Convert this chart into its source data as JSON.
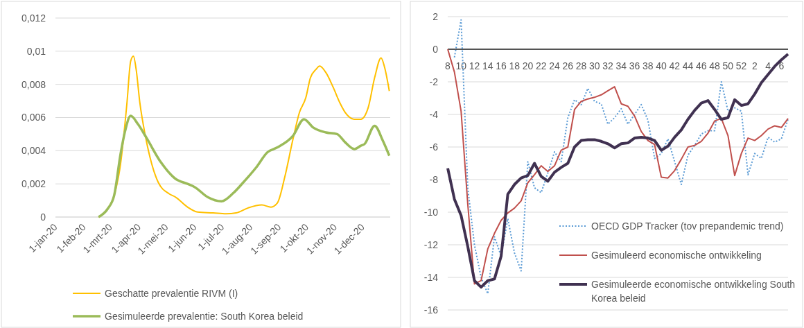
{
  "chart_data": [
    {
      "type": "line",
      "xlim": [
        "2020-01-01",
        "2020-12-31"
      ],
      "xticks": [
        {
          "value": "2020-01-01",
          "label": "1-jan-20"
        },
        {
          "value": "2020-02-01",
          "label": "1-feb-20"
        },
        {
          "value": "2020-03-01",
          "label": "1-mrt-20"
        },
        {
          "value": "2020-04-01",
          "label": "1-apr-20"
        },
        {
          "value": "2020-05-01",
          "label": "1-mei-20"
        },
        {
          "value": "2020-06-01",
          "label": "1-jun-20"
        },
        {
          "value": "2020-07-01",
          "label": "1-jul-20"
        },
        {
          "value": "2020-08-01",
          "label": "1-aug-20"
        },
        {
          "value": "2020-09-01",
          "label": "1-sep-20"
        },
        {
          "value": "2020-10-01",
          "label": "1-okt-20"
        },
        {
          "value": "2020-11-01",
          "label": "1-nov-20"
        },
        {
          "value": "2020-12-01",
          "label": "1-dec-20"
        }
      ],
      "ylim": [
        0,
        0.012
      ],
      "yticks": [
        0,
        {
          "value": 0.002,
          "label": "0,002"
        },
        {
          "value": 0.004,
          "label": "0,004"
        },
        {
          "value": 0.006,
          "label": "0,006"
        },
        {
          "value": 0.008,
          "label": "0,008"
        },
        {
          "value": 0.01,
          "label": "0,01"
        },
        {
          "value": 0.012,
          "label": "0,012"
        }
      ],
      "grid": "y",
      "legend": "bottom",
      "series": [
        {
          "name": "Geschatte prevalentie RIVM (I)",
          "color": "#ffc000",
          "x": [
            "2020-02-17",
            "2020-02-27",
            "2020-03-05",
            "2020-03-12",
            "2020-03-19",
            "2020-03-23",
            "2020-03-26",
            "2020-03-29",
            "2020-04-02",
            "2020-04-08",
            "2020-04-15",
            "2020-04-22",
            "2020-05-04",
            "2020-05-11",
            "2020-05-24",
            "2020-06-04",
            "2020-06-21",
            "2020-07-05",
            "2020-07-16",
            "2020-07-29",
            "2020-08-13",
            "2020-08-23",
            "2020-08-30",
            "2020-09-07",
            "2020-09-16",
            "2020-09-23",
            "2020-09-30",
            "2020-10-05",
            "2020-10-11",
            "2020-10-15",
            "2020-10-22",
            "2020-10-30",
            "2020-11-06",
            "2020-11-12",
            "2020-11-22",
            "2020-11-29",
            "2020-12-07",
            "2020-12-14",
            "2020-12-21",
            "2020-12-25",
            "2020-12-30"
          ],
          "values": [
            0,
            0.0005,
            0.0013,
            0.0032,
            0.0069,
            0.0094,
            0.0097,
            0.0089,
            0.0069,
            0.0049,
            0.0032,
            0.0021,
            0.0014,
            0.0012,
            0.0006,
            0.0003,
            0.00025,
            0.0002,
            0.00025,
            0.00055,
            0.00073,
            0.0006,
            0.00085,
            0.0024,
            0.0047,
            0.0063,
            0.0072,
            0.0084,
            0.0089,
            0.0091,
            0.0087,
            0.0078,
            0.0069,
            0.0063,
            0.0059,
            0.0059,
            0.0066,
            0.0084,
            0.0096,
            0.009,
            0.0076
          ]
        },
        {
          "name": "Gesimuleerde prevalentie: South Korea beleid",
          "color": "#9bbb59",
          "x": [
            "2020-02-17",
            "2020-02-27",
            "2020-03-05",
            "2020-03-12",
            "2020-03-17",
            "2020-03-23",
            "2020-03-31",
            "2020-04-09",
            "2020-04-25",
            "2020-05-11",
            "2020-05-24",
            "2020-06-01",
            "2020-06-15",
            "2020-06-30",
            "2020-07-13",
            "2020-07-24",
            "2020-08-07",
            "2020-08-19",
            "2020-08-30",
            "2020-09-16",
            "2020-09-28",
            "2020-10-08",
            "2020-10-22",
            "2020-11-03",
            "2020-11-12",
            "2020-11-22",
            "2020-11-29",
            "2020-12-03",
            "2020-12-14",
            "2020-12-23",
            "2020-12-30"
          ],
          "values": [
            0,
            0.0005,
            0.0013,
            0.0038,
            0.0052,
            0.0061,
            0.0056,
            0.0048,
            0.0033,
            0.0023,
            0.002,
            0.0018,
            0.0012,
            0.00095,
            0.00145,
            0.0021,
            0.003,
            0.0039,
            0.0042,
            0.0049,
            0.0059,
            0.0054,
            0.0051,
            0.005,
            0.0045,
            0.0041,
            0.0043,
            0.0044,
            0.0055,
            0.0046,
            0.0037
          ]
        }
      ]
    },
    {
      "type": "line",
      "categories": [
        "8",
        null,
        "10",
        null,
        "12",
        null,
        "14",
        null,
        "16",
        null,
        "18",
        null,
        "20",
        null,
        "22",
        null,
        "24",
        null,
        "26",
        null,
        "28",
        null,
        "30",
        null,
        "32",
        null,
        "34",
        null,
        "36",
        null,
        "38",
        null,
        "40",
        null,
        "42",
        null,
        "44",
        null,
        "46",
        null,
        "48",
        null,
        "50",
        null,
        "52",
        null,
        "2",
        null,
        "4",
        null,
        "6",
        null
      ],
      "ylim": [
        -16,
        2
      ],
      "yticks": [
        -16,
        -14,
        -12,
        -10,
        -8,
        -6,
        -4,
        -2,
        0,
        2
      ],
      "grid": "y",
      "legend": "bottom right",
      "series": [
        {
          "name": "OECD GDP Tracker (tov prepandemic trend)",
          "color": "#5b9bd5",
          "line_style": "dotted",
          "values": [
            null,
            -0.5,
            1.8,
            -8.5,
            -12,
            -14,
            -15,
            -11.5,
            -12.7,
            -10.4,
            -12.5,
            -13.6,
            -6.9,
            -8.5,
            -8.8,
            -7.6,
            -6.3,
            -6.9,
            -4.2,
            -3.1,
            -3.4,
            -2.4,
            -3.2,
            -3.35,
            -4.6,
            -4.2,
            -3.65,
            -4.6,
            -4,
            -3.4,
            -4.35,
            -6.7,
            -6.4,
            -5.5,
            -6.9,
            -8.3,
            -6.5,
            -5.9,
            -5.2,
            -5,
            -5,
            -2,
            -3.8,
            -3.6,
            -3.8,
            -7.7,
            -6.4,
            -6.7,
            -5.4,
            -5.7,
            -5.5,
            -4.3
          ]
        },
        {
          "name": "Gesimuleerd economische ontwikkeling",
          "color": "#c0504d",
          "line_style": "solid",
          "values": [
            0,
            -1.4,
            -3.8,
            -9.5,
            -14.4,
            -14.2,
            -12.25,
            -11.3,
            -10.5,
            -10.05,
            -9.75,
            -9.3,
            -8.2,
            -7.7,
            -7.15,
            -7.5,
            -7.15,
            -6.2,
            -6,
            -3.7,
            -3.2,
            -3.05,
            -2.95,
            -2.8,
            -2.55,
            -2.3,
            -3.35,
            -3.5,
            -4.1,
            -5.05,
            -5.6,
            -5.85,
            -7.85,
            -7.9,
            -7.45,
            -6.75,
            -6,
            -5.9,
            -5.65,
            -5.15,
            -4.4,
            -4.25,
            -5.3,
            -7.75,
            -6.4,
            -5.45,
            -5.6,
            -5.3,
            -4.9,
            -4.7,
            -4.8,
            -4.25
          ]
        },
        {
          "name": "Gesimuleerde economische ontwikkeling South Korea beleid",
          "color": "#403151",
          "line_style": "solid",
          "values": [
            -7.3,
            -9.2,
            -10.2,
            -12.1,
            -14.2,
            -14.6,
            -14.2,
            -14.1,
            -12.7,
            -8.9,
            -8.3,
            -7.9,
            -7.75,
            -7,
            -7.8,
            -8.1,
            -7.55,
            -7.25,
            -7,
            -6,
            -5.6,
            -5.55,
            -5.55,
            -5.65,
            -5.8,
            -6.05,
            -5.8,
            -5.75,
            -5.45,
            -5.4,
            -5.45,
            -5.6,
            -6.2,
            -5.95,
            -5.4,
            -4.95,
            -4.3,
            -3.75,
            -3.3,
            -3.15,
            -3.7,
            -4.3,
            -4.2,
            -3.1,
            -3.45,
            -3.35,
            -2.75,
            -2.05,
            -1.55,
            -1.05,
            -0.65,
            -0.3
          ]
        }
      ]
    }
  ]
}
